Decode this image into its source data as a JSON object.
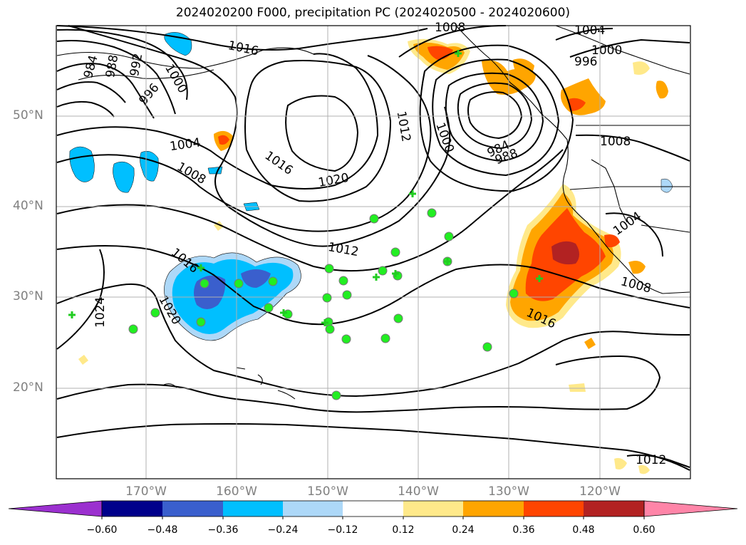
{
  "title": "2024020200 F000, precipitation PC (2024020500 - 2024020600)",
  "lat_labels": [
    "50°N",
    "40°N",
    "30°N",
    "20°N"
  ],
  "lon_labels": [
    "170°W",
    "160°W",
    "150°W",
    "140°W",
    "130°W",
    "120°W"
  ],
  "isobar_labels": [
    "1016",
    "984",
    "988",
    "992",
    "996",
    "1000",
    "1004",
    "1008",
    "1016",
    "1020",
    "1012",
    "1000",
    "1004",
    "1008",
    "996",
    "1000",
    "984",
    "988",
    "1004",
    "1008",
    "1016",
    "1020",
    "1024",
    "1012",
    "1016",
    "1008",
    "1012"
  ],
  "colorbar": {
    "ticks": [
      "−0.60",
      "−0.48",
      "−0.36",
      "−0.24",
      "−0.12",
      "0.12",
      "0.24",
      "0.36",
      "0.48",
      "0.60"
    ],
    "colors": [
      "#9b30cf",
      "#00008b",
      "#3a5fcd",
      "#00bfff",
      "#add8f8",
      "#ffffff",
      "#ffe98a",
      "#ffa500",
      "#ff4500",
      "#b22222",
      "#ff85a8"
    ]
  }
}
